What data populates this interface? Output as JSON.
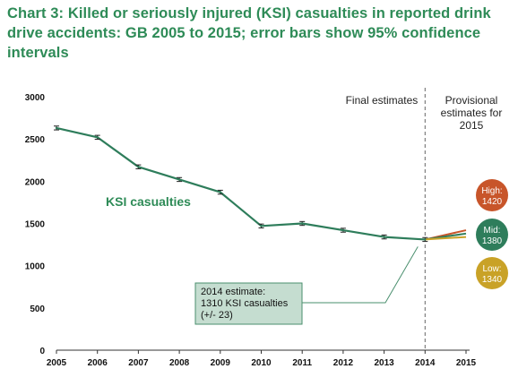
{
  "title": "Chart 3: Killed or seriously injured (KSI) casualties in reported drink drive accidents: GB 2005 to 2015; error bars show 95% confidence intervals",
  "colors": {
    "title": "#2e8b57",
    "series": "#2e7d5b",
    "high": "#c8552a",
    "mid": "#2e7d5b",
    "low": "#c9a227",
    "annotation_fill": "#c5ddd0",
    "annotation_border": "#4a8f6e"
  },
  "chart_data": {
    "type": "line",
    "title": "Chart 3: Killed or seriously injured (KSI) casualties in reported drink drive accidents: GB 2005 to 2015; error bars show 95% confidence intervals",
    "x": [
      2005,
      2006,
      2007,
      2008,
      2009,
      2010,
      2011,
      2012,
      2013,
      2014,
      2015
    ],
    "xticks": [
      "2005",
      "2006",
      "2007",
      "2008",
      "2009",
      "2010",
      "2011",
      "2012",
      "2013",
      "2014",
      "2015"
    ],
    "yticks": [
      "0",
      "500",
      "1000",
      "1500",
      "2000",
      "2500",
      "3000"
    ],
    "ylim": [
      0,
      3000
    ],
    "grid": false,
    "series": [
      {
        "name": "KSI casualties",
        "x": [
          2005,
          2006,
          2007,
          2008,
          2009,
          2010,
          2011,
          2012,
          2013,
          2014
        ],
        "values": [
          2630,
          2520,
          2170,
          2020,
          1870,
          1470,
          1500,
          1420,
          1340,
          1310
        ],
        "error": [
          23,
          23,
          23,
          23,
          23,
          23,
          23,
          23,
          23,
          23
        ]
      }
    ],
    "projections": [
      {
        "label": "High:",
        "value": 1420,
        "value_text": "1420",
        "color": "#c8552a"
      },
      {
        "label": "Mid:",
        "value": 1380,
        "value_text": "1380",
        "color": "#2e7d5b"
      },
      {
        "label": "Low:",
        "value": 1340,
        "value_text": "1340",
        "color": "#c9a227"
      }
    ],
    "divider_x": 2014,
    "region_labels": {
      "final": "Final estimates",
      "provisional": [
        "Provisional",
        "estimates for",
        "2015"
      ]
    },
    "series_label": "KSI casualties",
    "annotation": {
      "lines": [
        "2014 estimate:",
        "1310 KSI casualties",
        "(+/- 23)"
      ]
    }
  }
}
